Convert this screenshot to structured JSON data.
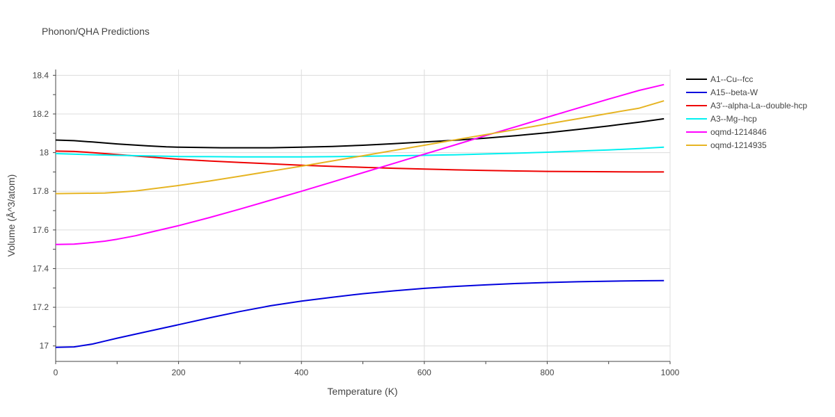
{
  "chart_data": {
    "type": "line",
    "title": "Phonon/QHA Predictions",
    "xlabel": "Temperature (K)",
    "ylabel": "Volume (Å^3/atom)",
    "xlim": [
      0,
      1000
    ],
    "ylim": [
      16.92,
      18.43
    ],
    "x_ticks": [
      0,
      200,
      400,
      600,
      800,
      1000
    ],
    "y_ticks": [
      17,
      17.2,
      17.4,
      17.6,
      17.8,
      18,
      18.2,
      18.4
    ],
    "grid": true,
    "legend_position": "right",
    "series": [
      {
        "name": "A1--Cu--fcc",
        "color": "#000000",
        "x": [
          0,
          30,
          60,
          100,
          150,
          180,
          200,
          270,
          350,
          400,
          450,
          500,
          550,
          600,
          650,
          700,
          750,
          800,
          850,
          900,
          950,
          990
        ],
        "y": [
          18.065,
          18.062,
          18.055,
          18.045,
          18.035,
          18.03,
          18.028,
          18.025,
          18.025,
          18.028,
          18.032,
          18.038,
          18.046,
          18.055,
          18.064,
          18.075,
          18.088,
          18.103,
          18.12,
          18.138,
          18.158,
          18.175
        ]
      },
      {
        "name": "A15--beta-W",
        "color": "#0000dd",
        "x": [
          0,
          30,
          60,
          80,
          100,
          150,
          200,
          250,
          300,
          350,
          400,
          450,
          500,
          550,
          600,
          650,
          700,
          750,
          800,
          850,
          900,
          950,
          990
        ],
        "y": [
          16.993,
          16.995,
          17.01,
          17.025,
          17.04,
          17.075,
          17.11,
          17.145,
          17.178,
          17.208,
          17.232,
          17.252,
          17.27,
          17.285,
          17.298,
          17.308,
          17.316,
          17.323,
          17.328,
          17.332,
          17.335,
          17.337,
          17.338
        ]
      },
      {
        "name": "A3'--alpha-La--double-hcp",
        "color": "#ee0000",
        "x": [
          0,
          30,
          60,
          100,
          150,
          200,
          250,
          300,
          350,
          400,
          450,
          500,
          550,
          600,
          650,
          700,
          750,
          800,
          850,
          900,
          950,
          990
        ],
        "y": [
          18.008,
          18.006,
          18.0,
          17.99,
          17.978,
          17.966,
          17.957,
          17.949,
          17.942,
          17.935,
          17.929,
          17.924,
          17.919,
          17.915,
          17.911,
          17.908,
          17.905,
          17.903,
          17.902,
          17.901,
          17.9,
          17.9
        ]
      },
      {
        "name": "A3--Mg--hcp",
        "color": "#00f0f0",
        "x": [
          0,
          50,
          100,
          150,
          200,
          250,
          300,
          350,
          400,
          450,
          500,
          550,
          600,
          650,
          700,
          750,
          800,
          850,
          900,
          950,
          990
        ],
        "y": [
          17.995,
          17.99,
          17.986,
          17.983,
          17.98,
          17.979,
          17.978,
          17.978,
          17.978,
          17.979,
          17.981,
          17.983,
          17.986,
          17.989,
          17.993,
          17.997,
          18.002,
          18.008,
          18.014,
          18.021,
          18.028
        ]
      },
      {
        "name": "oqmd-1214846",
        "color": "#ff00ff",
        "x": [
          0,
          30,
          60,
          80,
          100,
          130,
          150,
          200,
          250,
          300,
          350,
          400,
          450,
          500,
          550,
          600,
          650,
          700,
          750,
          800,
          850,
          900,
          950,
          990
        ],
        "y": [
          17.525,
          17.527,
          17.535,
          17.542,
          17.552,
          17.57,
          17.585,
          17.622,
          17.664,
          17.708,
          17.754,
          17.8,
          17.848,
          17.896,
          17.944,
          17.992,
          18.04,
          18.088,
          18.135,
          18.183,
          18.23,
          18.277,
          18.322,
          18.352
        ]
      },
      {
        "name": "oqmd-1214935",
        "color": "#e6b422",
        "x": [
          0,
          30,
          60,
          80,
          100,
          130,
          150,
          200,
          250,
          300,
          350,
          400,
          450,
          500,
          550,
          600,
          650,
          700,
          750,
          800,
          850,
          900,
          950,
          990
        ],
        "y": [
          17.788,
          17.789,
          17.79,
          17.791,
          17.795,
          17.802,
          17.81,
          17.83,
          17.853,
          17.878,
          17.904,
          17.93,
          17.957,
          17.984,
          18.011,
          18.038,
          18.066,
          18.093,
          18.12,
          18.148,
          18.175,
          18.203,
          18.23,
          18.268
        ]
      }
    ]
  }
}
